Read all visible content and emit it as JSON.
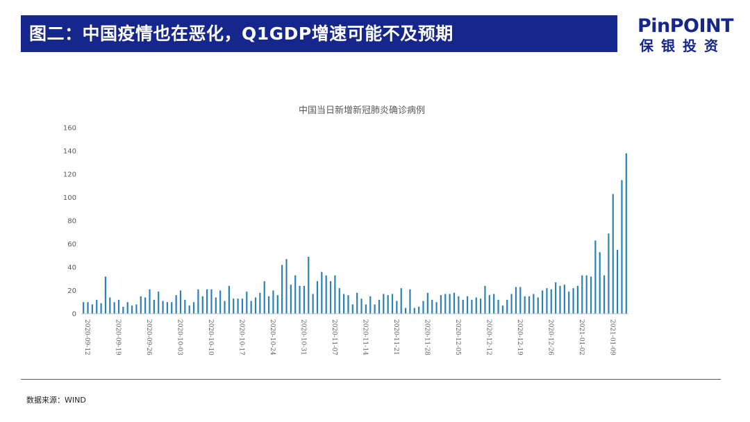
{
  "header": {
    "title": "图二：中国疫情也在恶化，Q1GDP增速可能不及预期",
    "logo_en": "PinPOINT",
    "logo_cn": "保银投资"
  },
  "footer": {
    "source": "数据来源：WIND"
  },
  "colors": {
    "title_bar": "#15278c",
    "bar": "#2a81b4",
    "logo": "#15278c"
  },
  "chart_data": {
    "type": "bar",
    "title": "中国当日新增新冠肺炎确诊病例",
    "xlabel": "",
    "ylabel": "",
    "ylim": [
      0,
      160
    ],
    "yticks": [
      0,
      20,
      40,
      60,
      80,
      100,
      120,
      140,
      160
    ],
    "grid": false,
    "legend": "none",
    "tick_labels": [
      "2020-09-12",
      "2020-09-19",
      "2020-09-26",
      "2020-10-03",
      "2020-10-10",
      "2020-10-17",
      "2020-10-24",
      "2020-10-31",
      "2020-11-07",
      "2020-11-14",
      "2020-11-21",
      "2020-11-28",
      "2020-12-05",
      "2020-12-12",
      "2020-12-19",
      "2020-12-26",
      "2021-01-02",
      "2021-01-09"
    ],
    "start_date": "2020-09-12",
    "end_date": "2021-01-14",
    "values": [
      10,
      10,
      8,
      12,
      9,
      32,
      14,
      10,
      12,
      6,
      10,
      7,
      8,
      15,
      14,
      21,
      12,
      19,
      11,
      10,
      10,
      16,
      20,
      12,
      7,
      10,
      21,
      15,
      21,
      21,
      14,
      20,
      11,
      24,
      13,
      13,
      13,
      19,
      11,
      14,
      18,
      28,
      15,
      20,
      16,
      42,
      47,
      25,
      33,
      24,
      24,
      49,
      17,
      28,
      36,
      33,
      28,
      33,
      22,
      17,
      16,
      8,
      18,
      13,
      8,
      15,
      8,
      12,
      17,
      16,
      17,
      11,
      22,
      5,
      21,
      5,
      6,
      11,
      18,
      12,
      10,
      16,
      17,
      17,
      18,
      15,
      12,
      15,
      12,
      14,
      13,
      24,
      16,
      17,
      12,
      7,
      12,
      17,
      23,
      23,
      15,
      15,
      17,
      14,
      20,
      22,
      21,
      27,
      24,
      25,
      19,
      22,
      24,
      33,
      33,
      32,
      63,
      53,
      33,
      69,
      103,
      55,
      115,
      138
    ]
  }
}
